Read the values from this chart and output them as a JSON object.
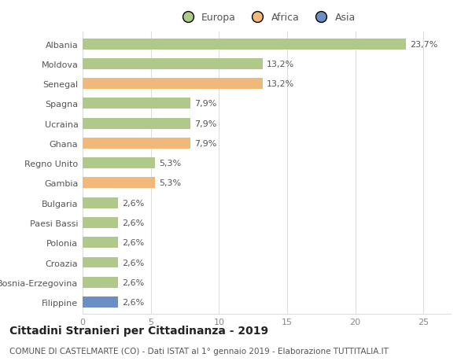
{
  "countries": [
    "Albania",
    "Moldova",
    "Senegal",
    "Spagna",
    "Ucraina",
    "Ghana",
    "Regno Unito",
    "Gambia",
    "Bulgaria",
    "Paesi Bassi",
    "Polonia",
    "Croazia",
    "Bosnia-Erzegovina",
    "Filippine"
  ],
  "values": [
    23.7,
    13.2,
    13.2,
    7.9,
    7.9,
    7.9,
    5.3,
    5.3,
    2.6,
    2.6,
    2.6,
    2.6,
    2.6,
    2.6
  ],
  "labels": [
    "23,7%",
    "13,2%",
    "13,2%",
    "7,9%",
    "7,9%",
    "7,9%",
    "5,3%",
    "5,3%",
    "2,6%",
    "2,6%",
    "2,6%",
    "2,6%",
    "2,6%",
    "2,6%"
  ],
  "continents": [
    "Europa",
    "Europa",
    "Africa",
    "Europa",
    "Europa",
    "Africa",
    "Europa",
    "Africa",
    "Europa",
    "Europa",
    "Europa",
    "Europa",
    "Europa",
    "Asia"
  ],
  "colors": {
    "Europa": "#aec98a",
    "Africa": "#f0b97a",
    "Asia": "#6b8ec5"
  },
  "legend_labels": [
    "Europa",
    "Africa",
    "Asia"
  ],
  "title": "Cittadini Stranieri per Cittadinanza - 2019",
  "subtitle": "COMUNE DI CASTELMARTE (CO) - Dati ISTAT al 1° gennaio 2019 - Elaborazione TUTTITALIA.IT",
  "xlim": [
    0,
    27
  ],
  "xticks": [
    0,
    5,
    10,
    15,
    20,
    25
  ],
  "bg_color": "#ffffff",
  "grid_color": "#dddddd",
  "bar_height": 0.55,
  "label_fontsize": 8,
  "tick_fontsize": 8,
  "legend_fontsize": 9,
  "title_fontsize": 10,
  "subtitle_fontsize": 7.5
}
